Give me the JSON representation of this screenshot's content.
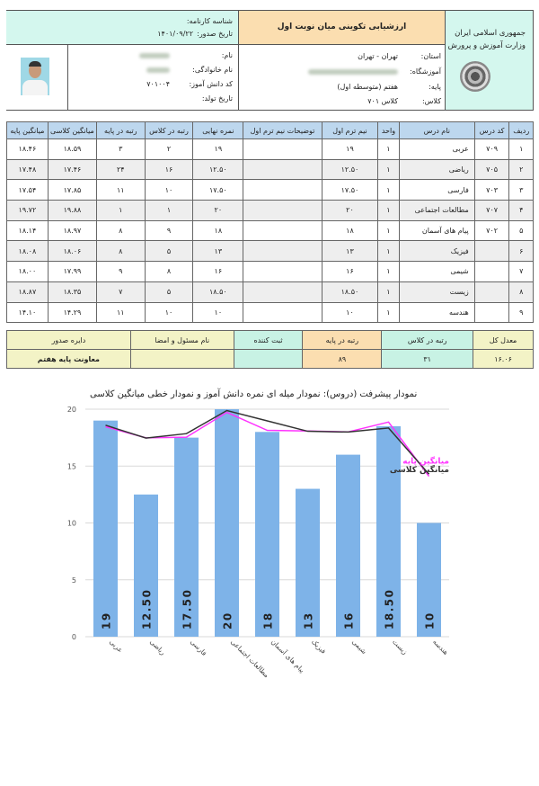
{
  "header": {
    "ministry_line1": "جمهوری اسلامی ایران",
    "ministry_line2": "وزارت آموزش و پرورش",
    "report_title": "ارزشیابی تکوینی میان نوبت اول",
    "certificate_id_label": "شناسه کارنامه:",
    "issue_date_label": "تاریخ صدور:",
    "issue_date": "۱۴۰۱/۰۹/۲۲",
    "province_label": "استان:",
    "province": "تهران - تهران",
    "school_label": "آموزشگاه:",
    "grade_label": "پایه:",
    "grade": "هفتم (متوسطه اول)",
    "class_label": "کلاس:",
    "class": "کلاس ۷۰۱",
    "name_label": "نام:",
    "family_label": "نام خانوادگی:",
    "student_code_label": "کد دانش آموز:",
    "student_code": "۷۰۱۰۰۴",
    "birth_label": "تاریخ تولد:"
  },
  "grades_table": {
    "headers": [
      "ردیف",
      "کد درس",
      "نام درس",
      "واحد",
      "نیم ترم اول",
      "توضیحات نیم ترم اول",
      "نمره نهایی",
      "رتبه در کلاس",
      "رتبه در پایه",
      "میانگین کلاسی",
      "میانگین پایه"
    ],
    "rows": [
      [
        "۱",
        "۷۰۹",
        "عربی",
        "۱",
        "۱۹",
        "",
        "۱۹",
        "۲",
        "۳",
        "۱۸.۵۹",
        "۱۸.۴۶"
      ],
      [
        "۲",
        "۷۰۵",
        "ریاضی",
        "۱",
        "۱۲.۵۰",
        "",
        "۱۲.۵۰",
        "۱۶",
        "۲۴",
        "۱۷.۴۶",
        "۱۷.۴۸"
      ],
      [
        "۳",
        "۷۰۳",
        "فارسی",
        "۱",
        "۱۷.۵۰",
        "",
        "۱۷.۵۰",
        "۱۰",
        "۱۱",
        "۱۷.۸۵",
        "۱۷.۵۴"
      ],
      [
        "۴",
        "۷۰۷",
        "مطالعات اجتماعی",
        "۱",
        "۲۰",
        "",
        "۲۰",
        "۱",
        "۱",
        "۱۹.۸۸",
        "۱۹.۷۲"
      ],
      [
        "۵",
        "۷۰۲",
        "پیام های آسمان",
        "۱",
        "۱۸",
        "",
        "۱۸",
        "۹",
        "۸",
        "۱۸.۹۷",
        "۱۸.۱۴"
      ],
      [
        "۶",
        "",
        "فیزیک",
        "۱",
        "۱۳",
        "",
        "۱۳",
        "۵",
        "۸",
        "۱۸.۰۶",
        "۱۸.۰۸"
      ],
      [
        "۷",
        "",
        "شیمی",
        "۱",
        "۱۶",
        "",
        "۱۶",
        "۸",
        "۹",
        "۱۷.۹۹",
        "۱۸.۰۰"
      ],
      [
        "۸",
        "",
        "زیست",
        "۱",
        "۱۸.۵۰",
        "",
        "۱۸.۵۰",
        "۵",
        "۷",
        "۱۸.۳۵",
        "۱۸.۸۷"
      ],
      [
        "۹",
        "",
        "هندسه",
        "۱",
        "۱۰",
        "",
        "۱۰",
        "۱۰",
        "۱۱",
        "۱۴.۲۹",
        "۱۴.۱۰"
      ]
    ]
  },
  "summary": {
    "headers": [
      "معدل کل",
      "رتبه در کلاس",
      "رتبه در پایه",
      "ثبت کننده",
      "نام مسئول و امضا",
      "دایره صدور"
    ],
    "values": [
      "۱۶.۰۶",
      "۳۱",
      "۸۹",
      "",
      "",
      "معاونت پایه هفتم"
    ],
    "colors": {
      "overall_avg": "#f3f3c6",
      "class_rank": "#c8f2e4",
      "grade_rank": "#fbdeb0",
      "registrar": "#c8f2e4",
      "signature": "#f3f3c6",
      "office": "#f3f3c6"
    }
  },
  "chart_data": {
    "type": "bar",
    "title": "نمودار پیشرفت (دروس): نمودار میله ای نمره دانش آموز و نمودار خطی میانگین کلاسی",
    "categories": [
      "عربی",
      "ریاضی",
      "فارسی",
      "مطالعات اجتماعی",
      "پیام های آسمان",
      "فیزیک",
      "شیمی",
      "زیست",
      "هندسه"
    ],
    "bar_labels": [
      "19",
      "12.50",
      "17.50",
      "20",
      "18",
      "13",
      "16",
      "18.50",
      "10"
    ],
    "series": [
      {
        "values": [
          19,
          12.5,
          17.5,
          20,
          18,
          13,
          16,
          18.5,
          10
        ],
        "color": "#7eb3e8"
      },
      {
        "name": "میانگین کلاسی",
        "values": [
          18.59,
          17.46,
          17.85,
          19.88,
          18.97,
          18.06,
          17.99,
          18.35,
          14.29
        ],
        "color": "#333333"
      },
      {
        "name": "میانگین پایه",
        "values": [
          18.46,
          17.48,
          17.54,
          19.72,
          18.14,
          18.08,
          18.0,
          18.87,
          14.1
        ],
        "color": "#ff33ff"
      }
    ],
    "yticks": [
      "0",
      "5",
      "10",
      "15",
      "20"
    ],
    "ylim": [
      0,
      20
    ],
    "grid": true,
    "legend_placement": "right"
  }
}
